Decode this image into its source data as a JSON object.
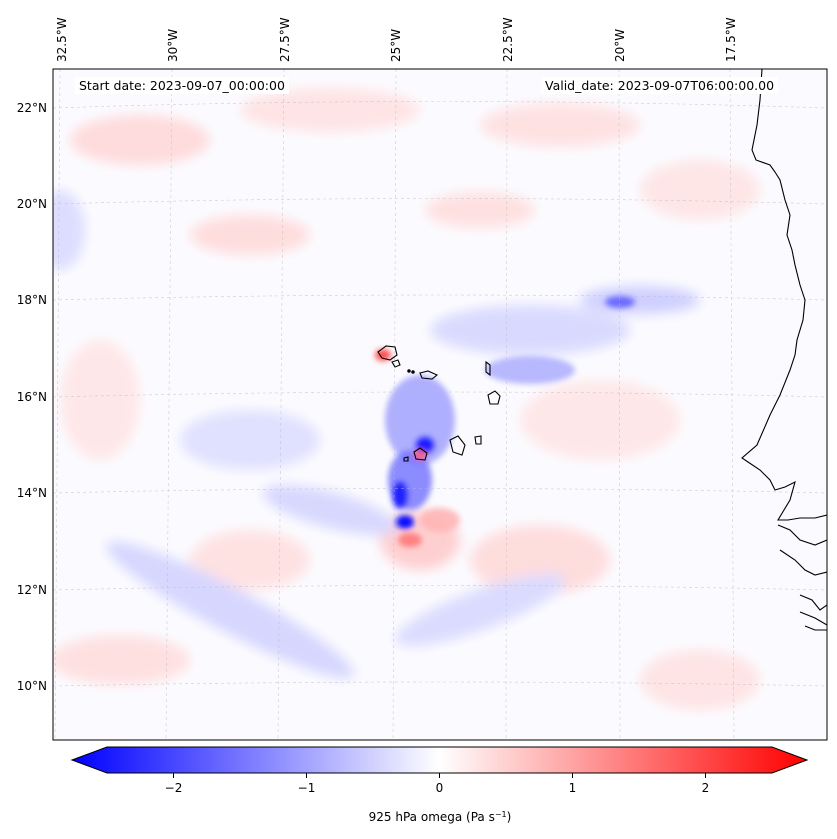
{
  "map": {
    "start_date_label": "Start date: 2023-09-07_00:00:00",
    "valid_date_label": "Valid_date: 2023-09-07T06:00:00.00",
    "lon_labels": [
      "32.5°W",
      "30°W",
      "27.5°W",
      "25°W",
      "22.5°W",
      "20°W",
      "17.5°W"
    ],
    "lat_labels": [
      "22°N",
      "20°N",
      "18°N",
      "16°N",
      "14°N",
      "12°N",
      "10°N"
    ],
    "field": "925 hPa omega",
    "coastline_color": "#000000"
  },
  "colorbar": {
    "ticks": [
      "−2",
      "−1",
      "0",
      "1",
      "2"
    ],
    "tick_values": [
      -2,
      -1,
      0,
      1,
      2
    ],
    "range": [
      -2.5,
      2.5
    ],
    "label_main": "925 hPa omega (Pa s",
    "label_sup": "−1",
    "label_end": ")",
    "colors": {
      "negative": "#0000ff",
      "zero": "#ffffff",
      "positive": "#ff0000"
    }
  }
}
